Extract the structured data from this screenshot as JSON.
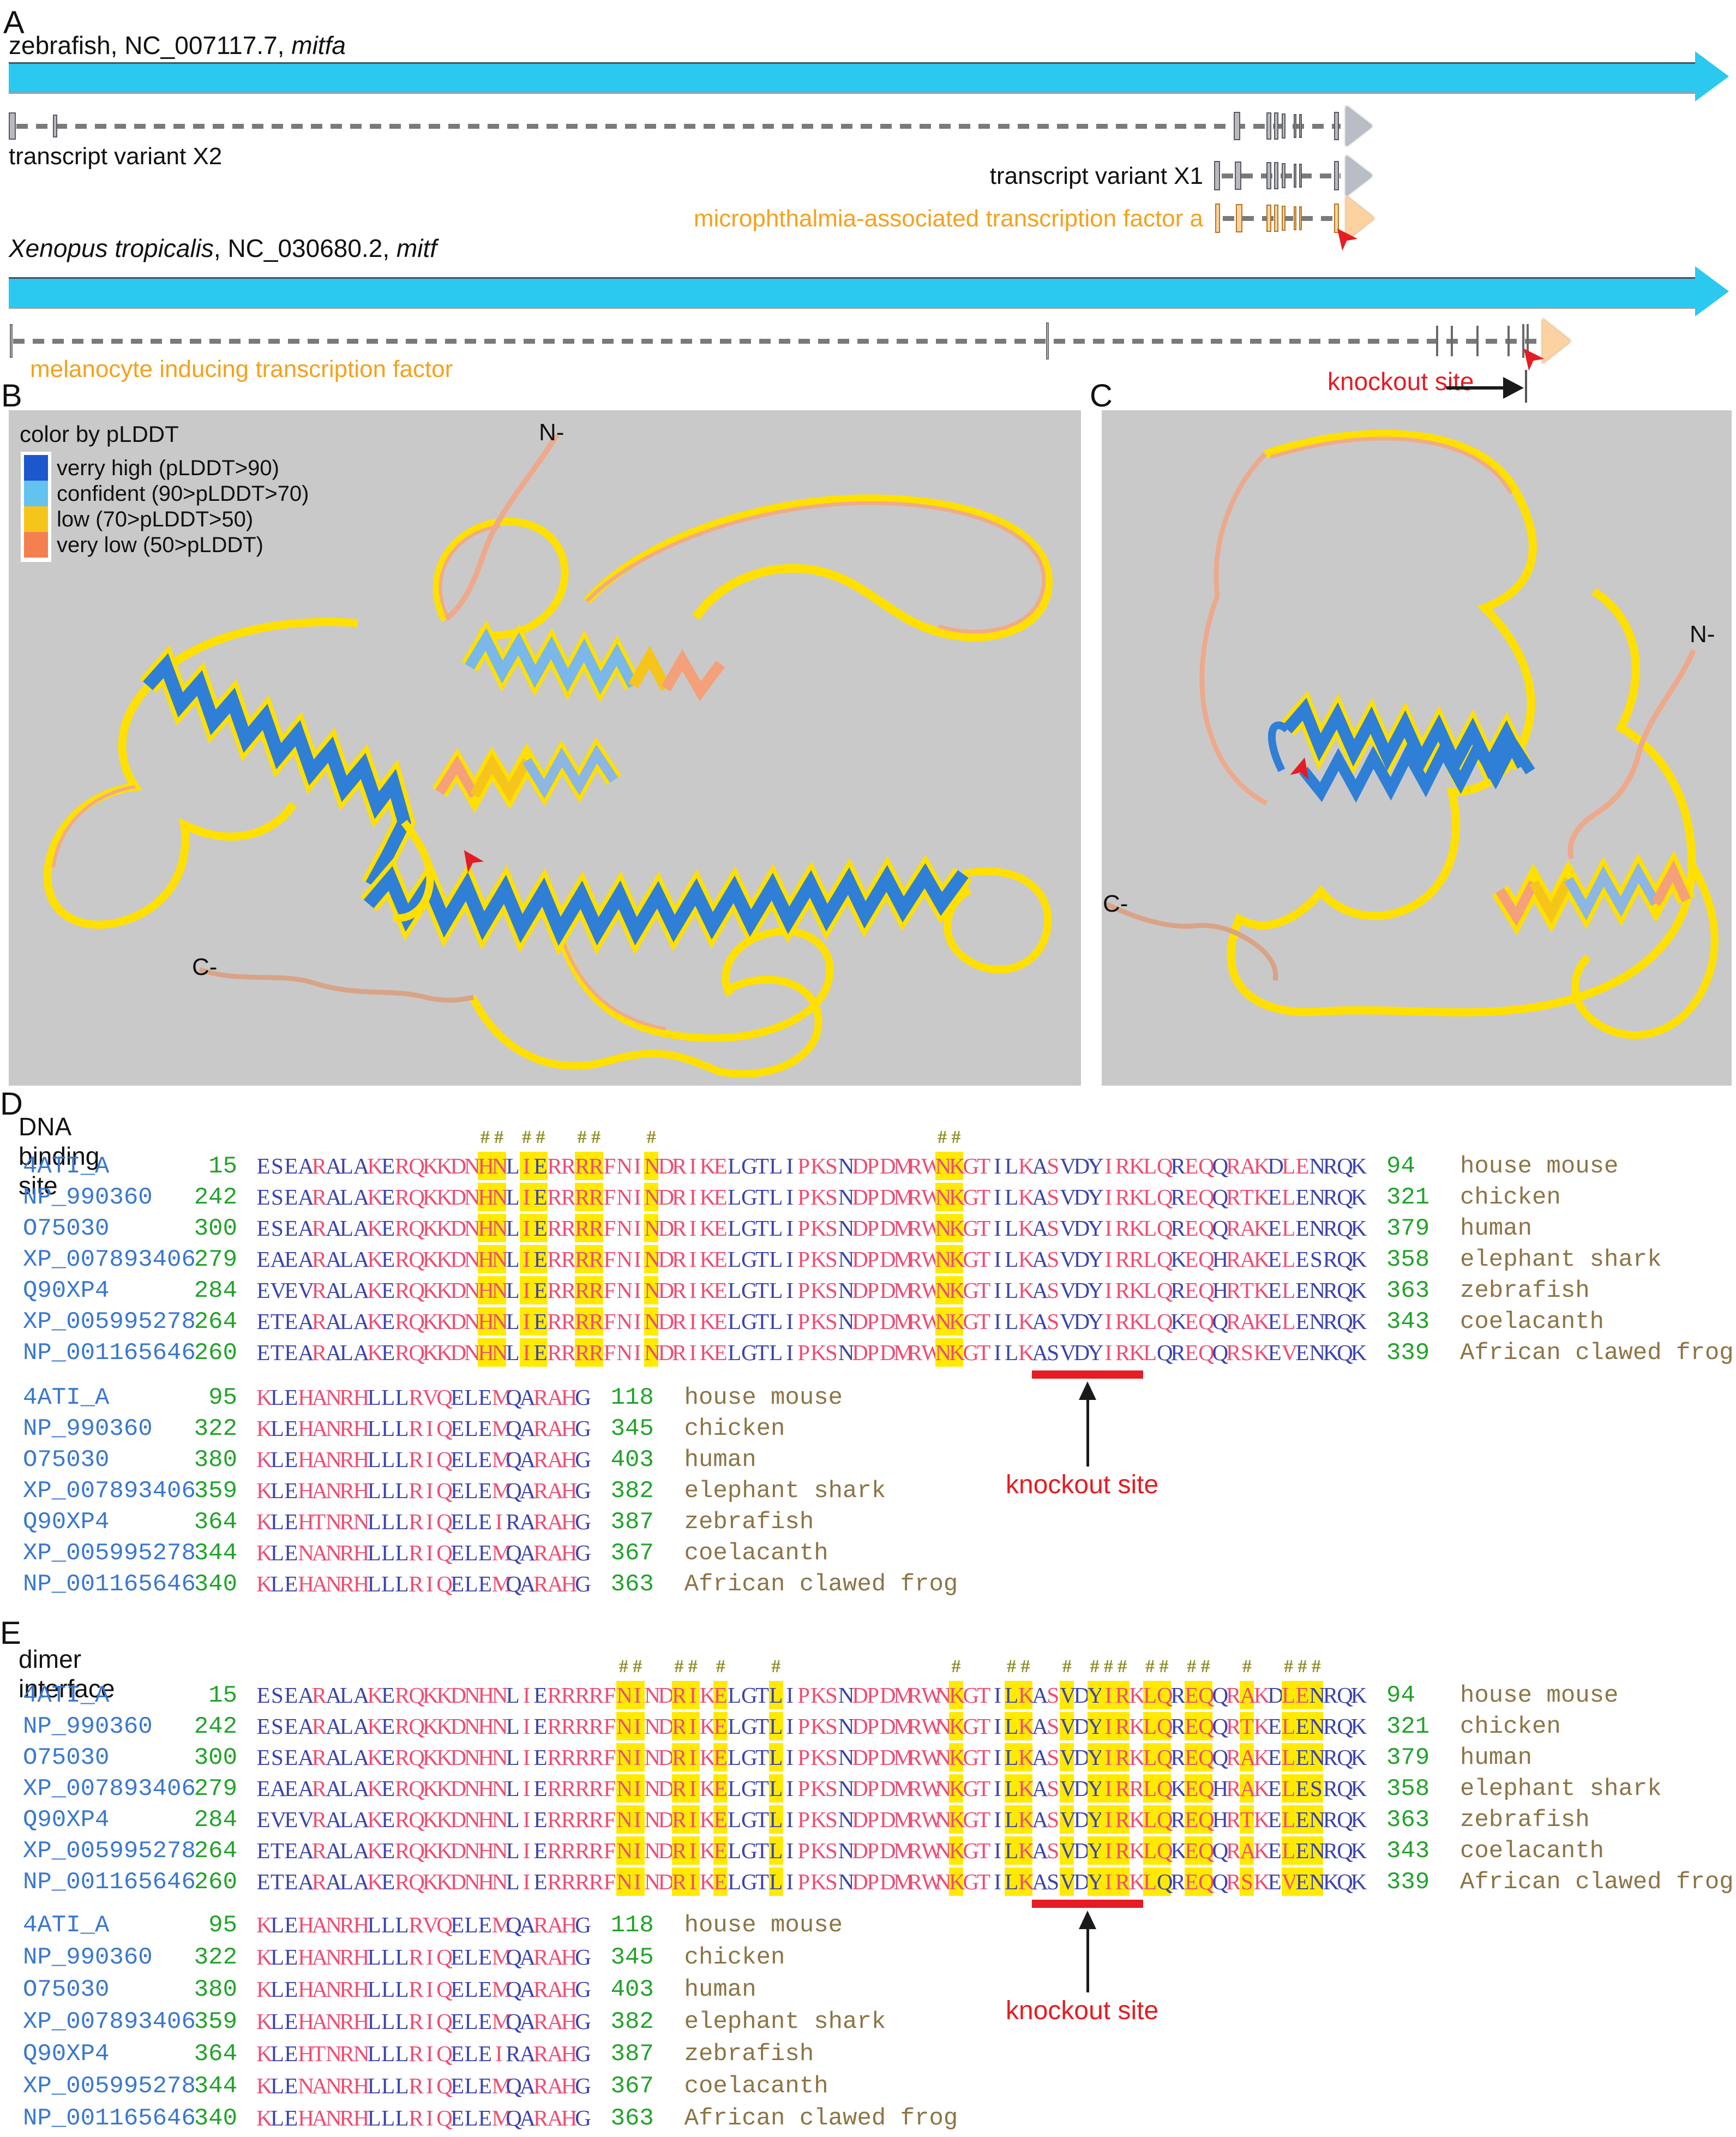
{
  "panelA": {
    "label": "A",
    "zebrafish_title": {
      "prefix": "zebrafish, NC_007117.7, ",
      "italic": "mitfa"
    },
    "xenopus_title": {
      "italic1": "Xenopus tropicalis",
      "mid": ", NC_030680.2, ",
      "italic2": "mitf"
    },
    "rows": {
      "x2_label": "transcript variant X2",
      "x1_label": "transcript variant X1",
      "mitfa_label": "microphthalmia-associated transcription factor a",
      "xenopus_label": "melanocyte inducing transcription factor"
    },
    "knockout_label": "knockout site",
    "colors": {
      "gene_bar": "#2bc8f0",
      "orange_label": "#f5a11c",
      "red": "#e51c23"
    }
  },
  "panelB": {
    "label": "B",
    "legend": {
      "title": "color by pLDDT",
      "entries": [
        {
          "label": "verry high (pLDDT>90)",
          "color": "#1c57cc"
        },
        {
          "label": "confident (90>pLDDT>70)",
          "color": "#63c3f0"
        },
        {
          "label": "low (70>pLDDT>50)",
          "color": "#f5c51c"
        },
        {
          "label": "very low (50>pLDDT)",
          "color": "#f47f4f"
        }
      ]
    },
    "n_label": "N-",
    "c_label": "C-"
  },
  "panelC": {
    "label": "C",
    "n_label": "N-",
    "c_label": "C-"
  },
  "alignment": {
    "accessions": [
      "4ATI_A",
      "NP_990360",
      "O75030",
      "XP_007893406",
      "Q90XP4",
      "XP_005995278",
      "NP_001165646"
    ],
    "species": [
      "house mouse",
      "chicken",
      "human",
      "elephant shark",
      "zebrafish",
      "coelacanth",
      "African clawed frog"
    ],
    "block1": {
      "starts": [
        15,
        242,
        300,
        279,
        284,
        264,
        260
      ],
      "ends": [
        94,
        321,
        379,
        358,
        363,
        343,
        339
      ],
      "seqs": [
        "ESEARALAKERQKKDNHNLIERRRRFNINDRIKELGTLIPKSNDPDMRWNKGTILKASVDYIRKLQREQQRAKDLENRQK",
        "ESEARALAKERQKKDNHNLIERRRRFNINDRIKELGTLIPKSNDPDMRWNKGTILKASVDYIRKLQREQQRTKELENRQK",
        "ESEARALAKERQKKDNHNLIERRRRFNINDRIKELGTLIPKSNDPDMRWNKGTILKASVDYIRKLQREQQRAKELENRQK",
        "EAEARALAKERQKKDNHNLIERRRRFNINDRIKELGTLIPKSNDPDMRWNKGTILKASVDYIRRLQKEQHRAKELESRQK",
        "EVEVRALAKERQKKDNHNLIERRRRFNINDRIKELGTLIPKSNDPDMRWNKGTILKASVDYIRKLQREQHRTKELENRQK",
        "ETEARALAKERQKKDNHNLIERRRRFNINDRIKELGTLIPKSNDPDMRWNKGTILKASVDYIRKLQKEQQRAKELENRQK",
        "ETEARALAKERQKKDNHNLIERRRRFNINDRIKELGTLIPKSNDPDMRWNKGTILKASVDYIRKLQREQQRSKEVENKQK"
      ],
      "colors": [
        "bbbbpbbbpbppppppppbpbpppppppppppppbbbbbpppbppppppppppbbpbpbbbpppppbppbpppbppbbbbpp",
        "bbbbpbbbpbppppppppbpbpppppppppppppbbbbbpppbppppppppppbbpbpbbbpppppbppbpppbpbbbbbpp",
        "bbbbpbbbpbppppppppbpbpppppppppppppbbbbbpppbppppppppppbbpbpbbbpppppbppbpppbpbbbbbpp",
        "bbbbpbbbpbppppppppbpbpppppppppppppbbbbbpppbppppppppppbbpbpbbbpppppbppbpppbpbbbbbpp",
        "bbbbpbbbpbppppppppbpbpppppppppppppbbbbbpppbppppppppppbbpbpbbbpppppbppbpppbpbbbbbpp",
        "bbbbpbbbpbppppppppbpbpppppppppppppbbbbbpppbppppppppppbbpbpbbbpppppbppbpppbpbbbbbpp",
        "bbbbpbbbpbppppppppbpbpppppppppppppbbbbbpppbppppppppppbbpbbbbbppppbbppbpppbpbbbbbpp"
      ]
    },
    "block2": {
      "starts": [
        95,
        322,
        380,
        359,
        364,
        344,
        340
      ],
      "ends": [
        118,
        345,
        403,
        382,
        387,
        367,
        363
      ],
      "seqs": [
        "KLEHANRHLLLRVQELEMQARAHG",
        "KLEHANRHLLLRIQELEMQARAHG",
        "KLEHANRHLLLRIQELEMQARAHG",
        "KLEHANRHLLLRIQELEMQARAHG",
        "KLEHTNRNLLLRIQELEIRARAHG",
        "KLENANRHLLLRIQELEMQARAHG",
        "KLEHANRHLLLRIQELEMQARAHG"
      ],
      "colors": [
        "pbbpppppbbbpppbbbpbbpppb",
        "pbbpppppbbbpppbbbpbbpppb",
        "pbbpppppbbbpppbbbpbbpppb",
        "pbbpppppbbbpppbbbpbbpppb",
        "pbbpppppbbbpppbbbpbbpppb",
        "pbbpppppbbbpppbbbpbbpppb",
        "pbbpppppbbbpppbbbpbbpppb"
      ]
    },
    "sections": [
      {
        "panel_label": "D",
        "title": "DNA binding site",
        "hash_cols": [
          17,
          18,
          20,
          21,
          24,
          25,
          29,
          50,
          51
        ],
        "highlight_ranges": [
          [
            17,
            18
          ],
          [
            20,
            21
          ],
          [
            24,
            25
          ],
          [
            29,
            29
          ],
          [
            50,
            51
          ]
        ],
        "knockout": {
          "label": "knockout site",
          "cols": [
            57,
            64
          ]
        }
      },
      {
        "panel_label": "E",
        "title": "dimer interface",
        "hash_cols": [
          27,
          28,
          31,
          32,
          34,
          38,
          51,
          55,
          56,
          59,
          61,
          62,
          63,
          65,
          66,
          68,
          69,
          72,
          75,
          76,
          77
        ],
        "highlight_ranges": [
          [
            27,
            28
          ],
          [
            31,
            32
          ],
          [
            34,
            34
          ],
          [
            38,
            38
          ],
          [
            51,
            51
          ],
          [
            55,
            56
          ],
          [
            59,
            59
          ],
          [
            61,
            63
          ],
          [
            65,
            66
          ],
          [
            68,
            69
          ],
          [
            72,
            72
          ],
          [
            75,
            77
          ]
        ],
        "knockout": {
          "label": "knockout site",
          "cols": [
            57,
            64
          ]
        }
      }
    ]
  }
}
